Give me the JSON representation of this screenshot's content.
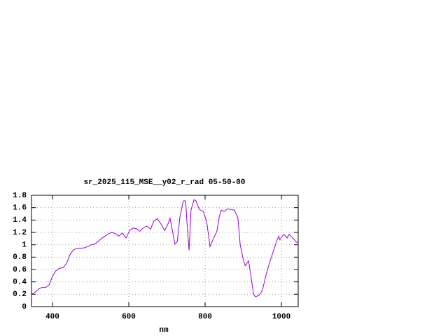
{
  "chart_data": {
    "type": "line",
    "title": "sr_2025_115_MSE__y02_r_rad 05-50-00",
    "x_label": "nm",
    "color": "#9400d3",
    "grid": true,
    "xlim": [
      345,
      1044
    ],
    "ylim": [
      0,
      1.8
    ],
    "xticks": [
      400,
      600,
      800,
      1000
    ],
    "yticks": [
      0,
      0.2,
      0.4,
      0.6,
      0.8,
      1,
      1.2,
      1.4,
      1.6,
      1.8
    ],
    "x": [
      345,
      354,
      363,
      372,
      382,
      391,
      400,
      409,
      418,
      428,
      437,
      446,
      455,
      464,
      483,
      492,
      501,
      510,
      519,
      528,
      538,
      547,
      556,
      565,
      574,
      583,
      593,
      602,
      611,
      620,
      629,
      639,
      648,
      657,
      666,
      675,
      684,
      694,
      703,
      708,
      716,
      721,
      727,
      734,
      743,
      749,
      754,
      758,
      763,
      771,
      776,
      785,
      795,
      804,
      813,
      822,
      831,
      837,
      842,
      850,
      859,
      868,
      877,
      886,
      892,
      899,
      905,
      914,
      919,
      927,
      932,
      941,
      950,
      960,
      969,
      978,
      987,
      993,
      996,
      1006,
      1015,
      1020,
      1026,
      1033,
      1039,
      1044
    ],
    "values": [
      0.2,
      0.23,
      0.28,
      0.31,
      0.31,
      0.35,
      0.49,
      0.58,
      0.62,
      0.63,
      0.7,
      0.84,
      0.92,
      0.94,
      0.95,
      0.97,
      1.0,
      1.01,
      1.05,
      1.1,
      1.14,
      1.18,
      1.2,
      1.18,
      1.14,
      1.19,
      1.11,
      1.23,
      1.27,
      1.26,
      1.22,
      1.28,
      1.3,
      1.25,
      1.39,
      1.42,
      1.34,
      1.23,
      1.34,
      1.43,
      1.17,
      1.01,
      1.05,
      1.45,
      1.71,
      1.71,
      1.22,
      0.91,
      1.56,
      1.73,
      1.71,
      1.57,
      1.54,
      1.38,
      0.97,
      1.1,
      1.22,
      1.45,
      1.56,
      1.54,
      1.58,
      1.57,
      1.56,
      1.43,
      1.0,
      0.79,
      0.66,
      0.74,
      0.54,
      0.2,
      0.16,
      0.18,
      0.26,
      0.52,
      0.71,
      0.88,
      1.05,
      1.14,
      1.08,
      1.17,
      1.11,
      1.17,
      1.13,
      1.09,
      1.04,
      1.05
    ]
  }
}
